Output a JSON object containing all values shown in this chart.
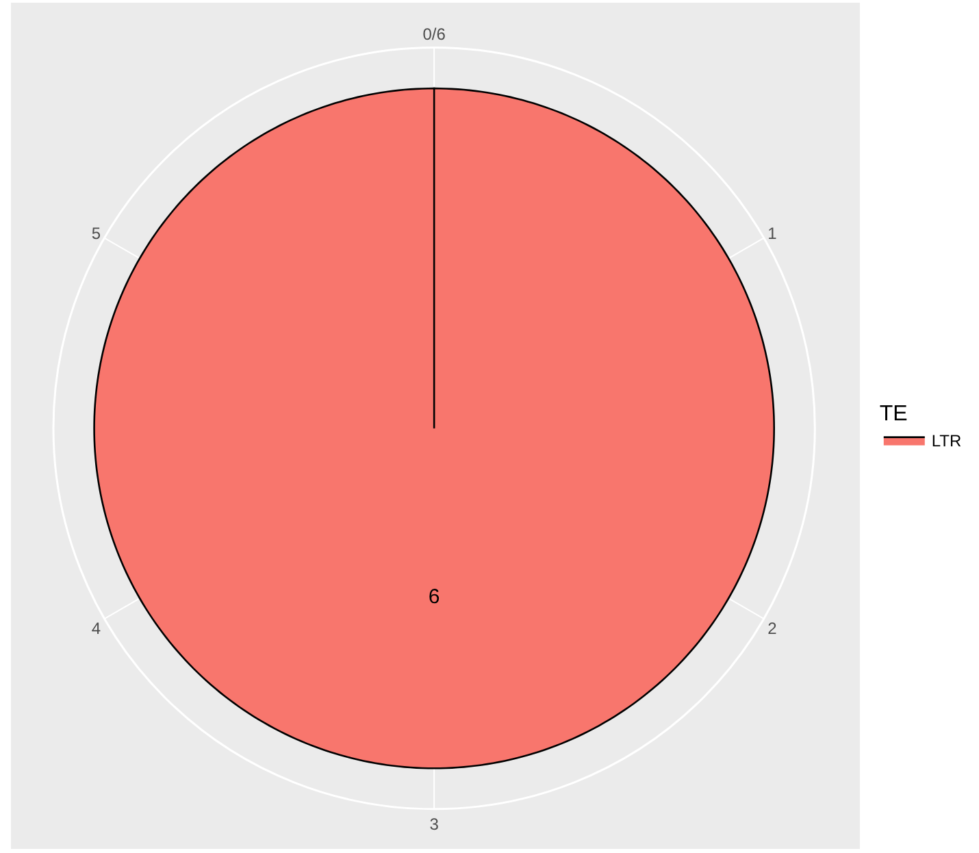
{
  "chart_data": {
    "type": "pie",
    "categories": [
      "LTR"
    ],
    "values": [
      6
    ],
    "colors": [
      "#f8766d"
    ],
    "legend_title": "TE",
    "legend": "right",
    "data_labels": true,
    "grid": true,
    "annotations": [
      "0/6",
      "1",
      "2",
      "3",
      "4",
      "5"
    ]
  }
}
